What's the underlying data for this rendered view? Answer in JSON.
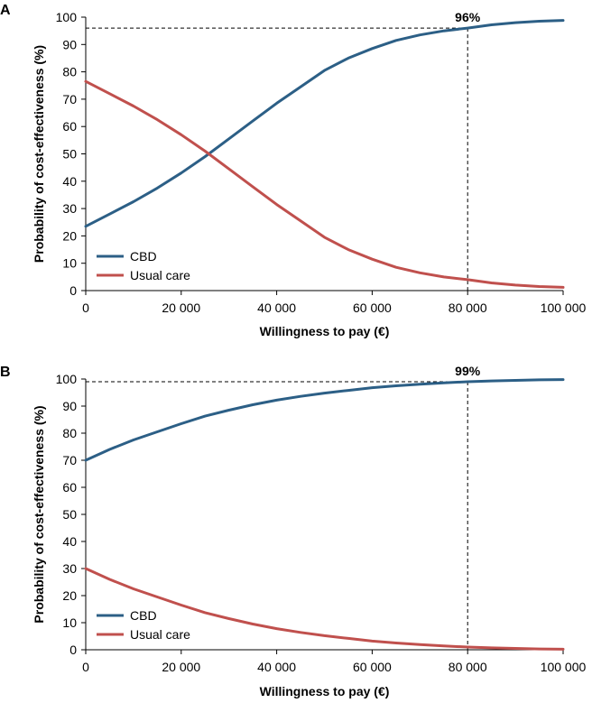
{
  "chart_data": [
    {
      "panel": "A",
      "type": "line",
      "xlabel": "Willingness to pay (€)",
      "ylabel": "Probability of cost-effectiveness (%)",
      "xlim": [
        0,
        100000
      ],
      "ylim": [
        0,
        100
      ],
      "x_ticks": [
        0,
        20000,
        40000,
        60000,
        80000,
        100000
      ],
      "x_tick_labels": [
        "0",
        "20 000",
        "40 000",
        "60 000",
        "80 000",
        "100 000"
      ],
      "y_ticks": [
        0,
        10,
        20,
        30,
        40,
        50,
        60,
        70,
        80,
        90,
        100
      ],
      "y_tick_labels": [
        "0",
        "10",
        "20",
        "30",
        "40",
        "50",
        "60",
        "70",
        "80",
        "90",
        "100"
      ],
      "x": [
        0,
        5000,
        10000,
        15000,
        20000,
        25000,
        30000,
        35000,
        40000,
        45000,
        50000,
        55000,
        60000,
        65000,
        70000,
        75000,
        80000,
        85000,
        90000,
        95000,
        100000
      ],
      "series": [
        {
          "name": "CBD",
          "color": "#2c5f86",
          "values": [
            23.5,
            28,
            32.5,
            37.5,
            43,
            49,
            55.5,
            62,
            68.5,
            74.5,
            80.5,
            85,
            88.5,
            91.5,
            93.5,
            95,
            96,
            97.2,
            98,
            98.5,
            98.8
          ]
        },
        {
          "name": "Usual care",
          "color": "#c0504d",
          "values": [
            76.5,
            72,
            67.5,
            62.5,
            57,
            51,
            44.5,
            38,
            31.5,
            25.5,
            19.5,
            15,
            11.5,
            8.5,
            6.5,
            5,
            4,
            2.8,
            2,
            1.5,
            1.2
          ]
        }
      ],
      "annotation": {
        "label": "96%",
        "x": 80000,
        "y": 96
      },
      "legend": {
        "placement": "bottom-left",
        "entries": [
          "CBD",
          "Usual care"
        ]
      }
    },
    {
      "panel": "B",
      "type": "line",
      "xlabel": "Willingness to pay (€)",
      "ylabel": "Probability of cost-effectiveness (%)",
      "xlim": [
        0,
        100000
      ],
      "ylim": [
        0,
        100
      ],
      "x_ticks": [
        0,
        20000,
        40000,
        60000,
        80000,
        100000
      ],
      "x_tick_labels": [
        "0",
        "20 000",
        "40 000",
        "60 000",
        "80 000",
        "100 000"
      ],
      "y_ticks": [
        0,
        10,
        20,
        30,
        40,
        50,
        60,
        70,
        80,
        90,
        100
      ],
      "y_tick_labels": [
        "0",
        "10",
        "20",
        "30",
        "40",
        "50",
        "60",
        "70",
        "80",
        "90",
        "100"
      ],
      "x": [
        0,
        5000,
        10000,
        15000,
        20000,
        25000,
        30000,
        35000,
        40000,
        45000,
        50000,
        55000,
        60000,
        65000,
        70000,
        75000,
        80000,
        85000,
        90000,
        95000,
        100000
      ],
      "series": [
        {
          "name": "CBD",
          "color": "#2c5f86",
          "values": [
            70,
            74,
            77.5,
            80.5,
            83.5,
            86.3,
            88.5,
            90.5,
            92.2,
            93.6,
            94.8,
            95.8,
            96.8,
            97.5,
            98.1,
            98.6,
            99,
            99.3,
            99.5,
            99.7,
            99.8
          ]
        },
        {
          "name": "Usual care",
          "color": "#c0504d",
          "values": [
            30,
            26,
            22.5,
            19.5,
            16.5,
            13.7,
            11.5,
            9.5,
            7.8,
            6.4,
            5.2,
            4.2,
            3.2,
            2.5,
            1.9,
            1.4,
            1,
            0.7,
            0.5,
            0.3,
            0.2
          ]
        }
      ],
      "annotation": {
        "label": "99%",
        "x": 80000,
        "y": 99
      },
      "legend": {
        "placement": "bottom-left",
        "entries": [
          "CBD",
          "Usual care"
        ]
      }
    }
  ]
}
